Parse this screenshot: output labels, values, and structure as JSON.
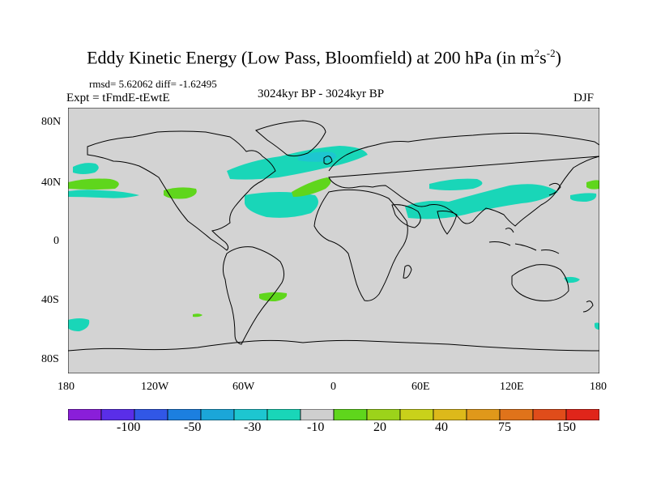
{
  "title": {
    "main": "Eddy Kinetic Energy (Low Pass, Bloomfield) at 200 hPa (in m",
    "sup1": "2",
    "mid": "s",
    "sup2": "-2",
    "end": ")"
  },
  "stats": "rmsd= 5.62062 diff= -1.62495",
  "expt": "Expt = tFmdE-tEwtE",
  "period": "3024kyr BP - 3024kyr BP",
  "season": "DJF",
  "yticks": [
    "80N",
    "40N",
    "0",
    "40S",
    "80S"
  ],
  "xticks": [
    "180",
    "120W",
    "60W",
    "0",
    "60E",
    "120E",
    "180"
  ],
  "map": {
    "background": "#d3d3d3",
    "outline": "#000000"
  },
  "colorbar": {
    "colors": [
      "#8a1ed9",
      "#5a2ee8",
      "#3157e6",
      "#1c7fe0",
      "#1ba6d8",
      "#1dc6d0",
      "#19d6b8",
      "#cfcfcf",
      "#5fd61c",
      "#9cd31a",
      "#c9d11a",
      "#ddb91a",
      "#e0981a",
      "#e0731a",
      "#e04c1a",
      "#e0251a"
    ],
    "labels": [
      "-100",
      "-50",
      "-30",
      "-10",
      "20",
      "40",
      "75",
      "150"
    ]
  },
  "fill_colors": {
    "neg_small": "#19d6b8",
    "neg_mid": "#1dc6d0",
    "pos_small": "#5fd61c"
  }
}
